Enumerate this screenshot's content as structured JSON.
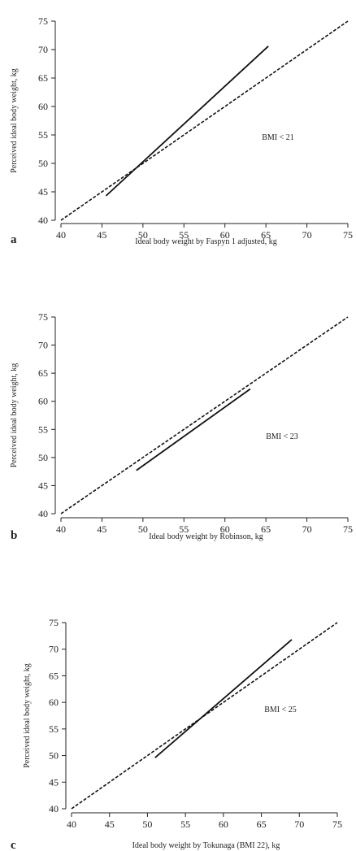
{
  "chart_data": [
    {
      "type": "line",
      "panel_label": "a",
      "xlabel": "Ideal body weight by Faspyn 1 adjusted, kg",
      "ylabel": "Perceived ideal body weight, kg",
      "annotation": "BMI  < 21",
      "xlim": [
        40,
        75
      ],
      "ylim": [
        40,
        75
      ],
      "xticks": [
        "40",
        "45",
        "50",
        "55",
        "60",
        "65",
        "70",
        "75"
      ],
      "yticks": [
        "40",
        "45",
        "50",
        "55",
        "60",
        "65",
        "70",
        "75"
      ],
      "grid": false,
      "series": [
        {
          "style": "dashed",
          "x": [
            40,
            75
          ],
          "y": [
            40,
            75
          ]
        },
        {
          "style": "solid",
          "x": [
            45.5,
            65.3
          ],
          "y": [
            44.3,
            70.6
          ]
        }
      ]
    },
    {
      "type": "line",
      "panel_label": "b",
      "xlabel": "Ideal body weight by Robinson, kg",
      "ylabel": "Perceived ideal body weight, kg",
      "annotation": "BMI < 23",
      "xlim": [
        40,
        75
      ],
      "ylim": [
        40,
        75
      ],
      "xticks": [
        "40",
        "45",
        "50",
        "55",
        "60",
        "65",
        "70",
        "75"
      ],
      "yticks": [
        "40",
        "45",
        "50",
        "55",
        "60",
        "65",
        "70",
        "75"
      ],
      "grid": false,
      "series": [
        {
          "style": "dashed",
          "x": [
            40,
            75
          ],
          "y": [
            40,
            75
          ]
        },
        {
          "style": "solid",
          "x": [
            49.2,
            63.1
          ],
          "y": [
            47.7,
            62.2
          ]
        }
      ]
    },
    {
      "type": "line",
      "panel_label": "c",
      "xlabel": "Ideal body weight by Tokunaga (BMI 22), kg",
      "ylabel": "Perceived ideal body weight, kg",
      "annotation": "BMI < 25",
      "xlim": [
        40,
        75
      ],
      "ylim": [
        40,
        75
      ],
      "xticks": [
        "40",
        "45",
        "50",
        "55",
        "60",
        "65",
        "70",
        "75"
      ],
      "yticks": [
        "40",
        "45",
        "50",
        "55",
        "60",
        "65",
        "70",
        "75"
      ],
      "grid": false,
      "series": [
        {
          "style": "dashed",
          "x": [
            40,
            75
          ],
          "y": [
            40,
            75
          ]
        },
        {
          "style": "solid",
          "x": [
            51,
            69
          ],
          "y": [
            49.6,
            71.8
          ]
        }
      ]
    }
  ]
}
